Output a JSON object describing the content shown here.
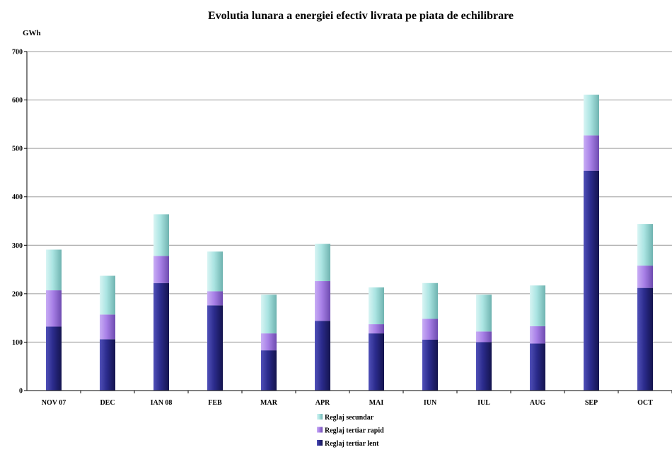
{
  "chart_data": {
    "type": "bar",
    "stacked": true,
    "title": "Evolutia lunara a energiei efectiv livrata pe piata de echilibrare",
    "ylabel": "GWh",
    "ylim": [
      0,
      700
    ],
    "yticks": [
      0,
      100,
      200,
      300,
      400,
      500,
      600,
      700
    ],
    "grid": "horizontal",
    "legend_position": "bottom",
    "categories": [
      "NOV 07",
      "DEC",
      "IAN 08",
      "FEB",
      "MAR",
      "APR",
      "MAI",
      "IUN",
      "IUL",
      "AUG",
      "SEP",
      "OCT"
    ],
    "series": [
      {
        "name": "Reglaj tertiar lent",
        "color": "#2b2b8c",
        "values": [
          132,
          106,
          222,
          176,
          83,
          144,
          118,
          105,
          100,
          97,
          454,
          212
        ]
      },
      {
        "name": "Reglaj tertiar rapid",
        "color": "#a77fe6",
        "values": [
          75,
          51,
          56,
          29,
          35,
          82,
          19,
          43,
          22,
          36,
          73,
          46
        ]
      },
      {
        "name": "Reglaj secundar",
        "color": "#a9e3e1",
        "values": [
          84,
          80,
          86,
          82,
          80,
          77,
          76,
          74,
          76,
          84,
          84,
          86
        ]
      }
    ]
  }
}
